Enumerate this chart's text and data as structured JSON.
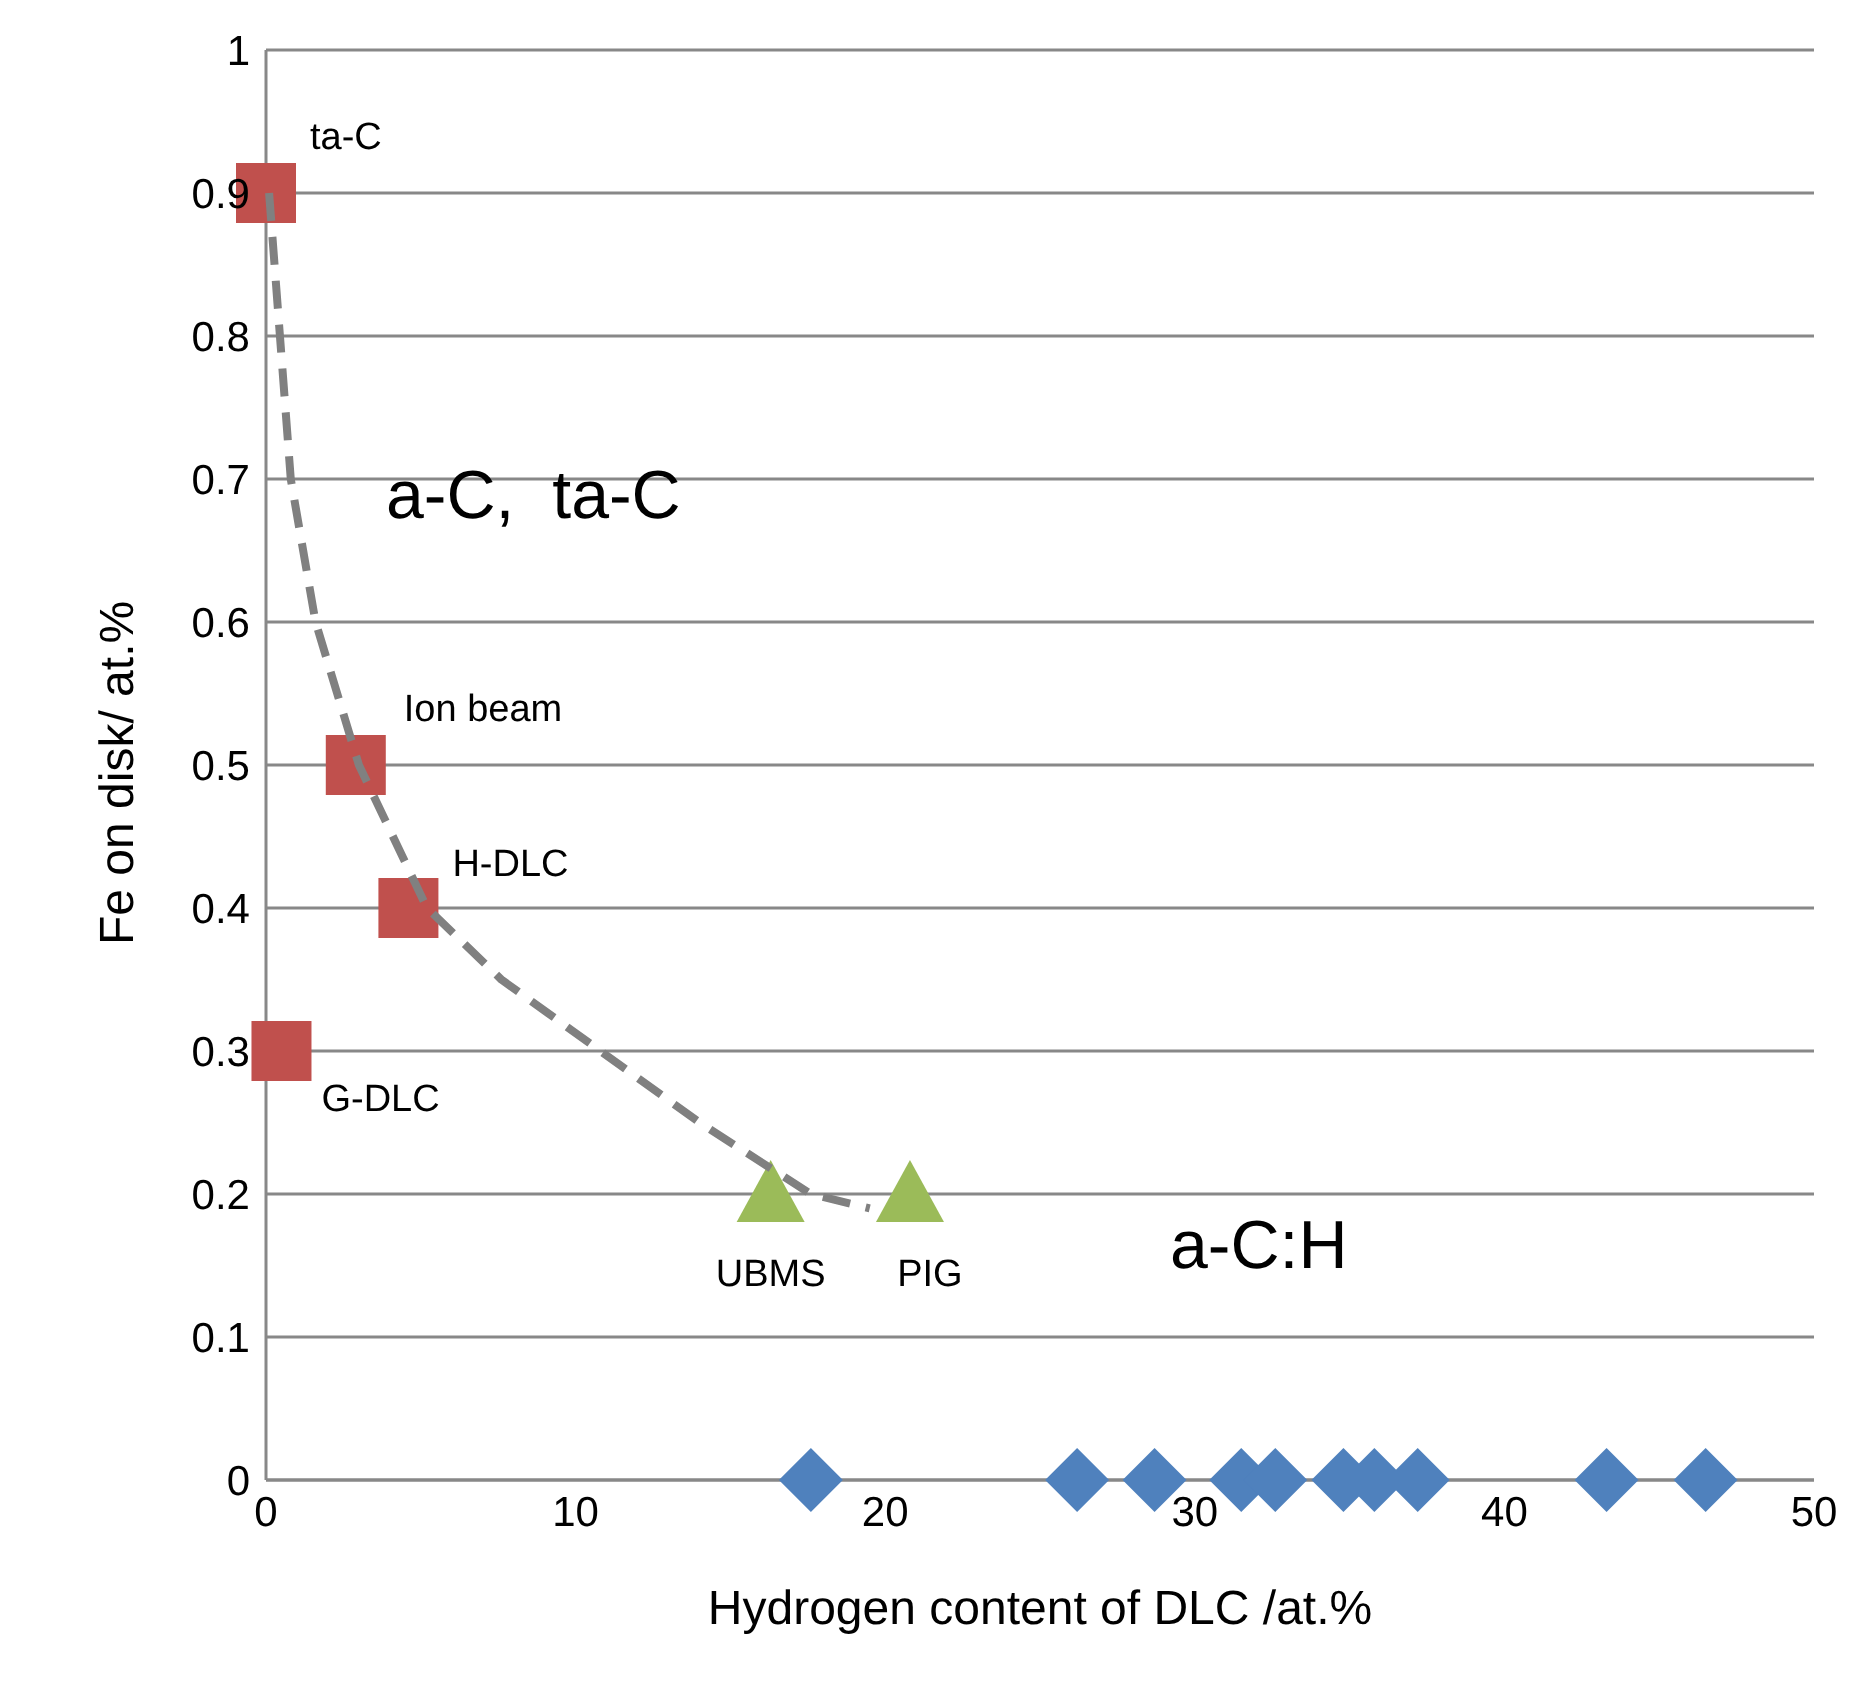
{
  "chart_data": {
    "type": "scatter",
    "xlabel": "Hydrogen content of DLC /at.%",
    "ylabel": "Fe on disk/ at.%",
    "xlim": [
      0,
      50
    ],
    "xticks": [
      0,
      10,
      20,
      30,
      40,
      50
    ],
    "ylim": [
      0,
      1
    ],
    "yticks": [
      0,
      0.1,
      0.2,
      0.3,
      0.4,
      0.5,
      0.6,
      0.7,
      0.8,
      0.9,
      1
    ],
    "grid": "y",
    "series": [
      {
        "color": "#c0504d",
        "marker": "square",
        "x": [
          0,
          2.9,
          4.6,
          0.5
        ],
        "values": [
          0.9,
          0.5,
          0.4,
          0.3
        ]
      },
      {
        "color": "#9bbb59",
        "marker": "triangle",
        "x": [
          16.3,
          20.8
        ],
        "values": [
          0.2,
          0.2
        ]
      },
      {
        "color": "#4f81bd",
        "marker": "diamond",
        "x": [
          17.6,
          26.2,
          28.7,
          31.5,
          32.6,
          34.8,
          35.8,
          37.2,
          43.3,
          46.5
        ],
        "values": [
          0,
          0,
          0,
          0,
          0,
          0,
          0,
          0,
          0,
          0
        ]
      },
      {
        "type": "line",
        "color": "#808080",
        "line_style": "dashed",
        "marker": "none",
        "x": [
          0.1,
          0.8,
          1.6,
          3.0,
          5.2,
          7.6,
          10.8,
          14,
          17.6,
          19.5
        ],
        "values": [
          0.9,
          0.7,
          0.6,
          0.5,
          0.4,
          0.35,
          0.3,
          0.25,
          0.2,
          0.19
        ]
      }
    ],
    "annotations": [
      {
        "text": "ta-C",
        "x": 0,
        "y": 0.9
      },
      {
        "text": "Ion beam",
        "x": 2.9,
        "y": 0.5
      },
      {
        "text": "H-DLC",
        "x": 4.6,
        "y": 0.4
      },
      {
        "text": "G-DLC",
        "x": 0.5,
        "y": 0.3
      },
      {
        "text": "UBMS",
        "x": 16.3,
        "y": 0.2
      },
      {
        "text": "PIG",
        "x": 20.8,
        "y": 0.2
      },
      "a-C,  ta-C",
      "a-C:H"
    ]
  }
}
